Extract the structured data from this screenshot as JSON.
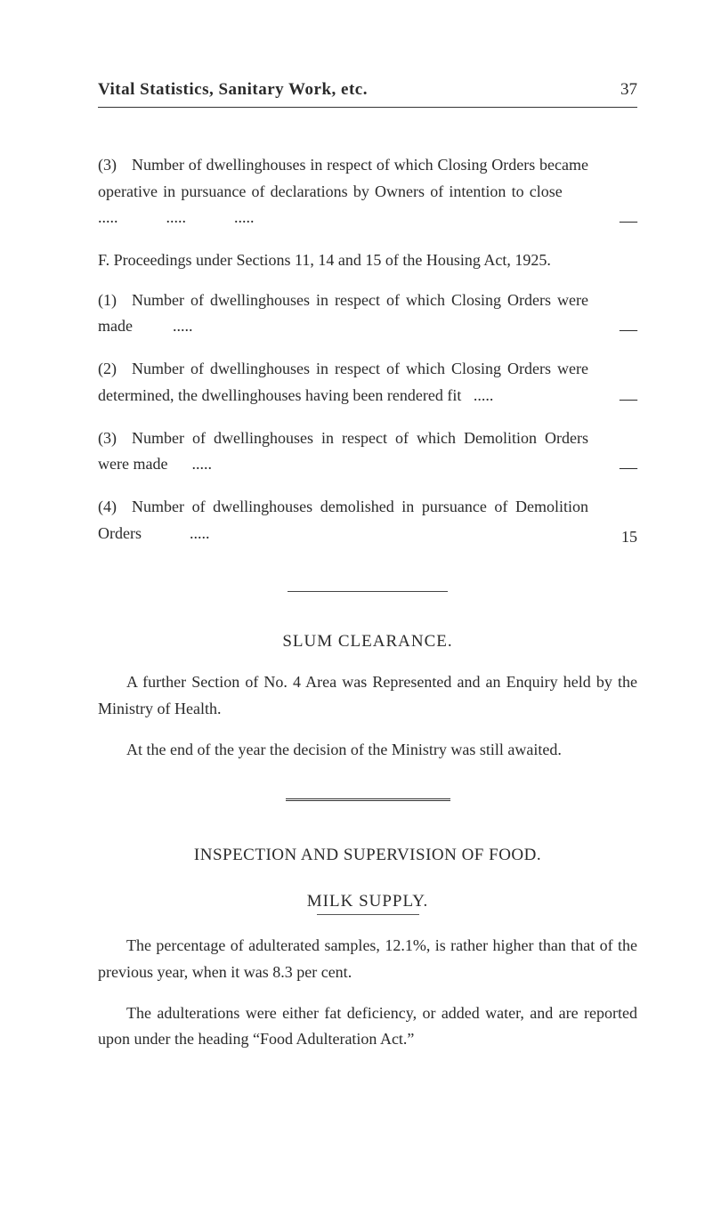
{
  "header": {
    "title": "Vital Statistics, Sanitary Work, etc.",
    "page": "37"
  },
  "item3_top": {
    "num": "(3)",
    "text": "Number of dwellinghouses in respect of which Closing Orders became operative in pursuance of declarations by Owners of intention to close      .....            .....            .....",
    "value": "—"
  },
  "sectionF": {
    "text": "F. Proceedings under Sections 11, 14 and 15 of the Housing Act, 1925."
  },
  "item1": {
    "num": "(1)",
    "text": "Number of dwellinghouses in respect of which Closing Orders were made          .....",
    "value": "—"
  },
  "item2": {
    "num": "(2)",
    "text": "Number of dwellinghouses in respect of which Closing Orders were determined, the dwellinghouses having been rendered fit   .....",
    "value": "—"
  },
  "item3": {
    "num": "(3)",
    "text": "Number of dwellinghouses in respect of which Demolition Orders were made      .....",
    "value": "—"
  },
  "item4": {
    "num": "(4)",
    "text": "Number of dwellinghouses demolished in pursuance of Demolition Orders            .....",
    "value": "15"
  },
  "slum": {
    "title": "SLUM CLEARANCE.",
    "para1": "A further Section of No. 4 Area was Represented and an Enquiry held by the Ministry of Health.",
    "para2": "At the end of the year the decision of the Ministry was still awaited."
  },
  "inspection": {
    "title": "INSPECTION AND SUPERVISION OF FOOD."
  },
  "milk": {
    "title": "MILK SUPPLY.",
    "para1": "The percentage of adulterated samples, 12.1%, is rather higher than that of the previous year, when it was 8.3 per cent.",
    "para2": "The adulterations were either fat deficiency, or added water, and are reported upon under the heading “Food Adulteration Act.”"
  }
}
